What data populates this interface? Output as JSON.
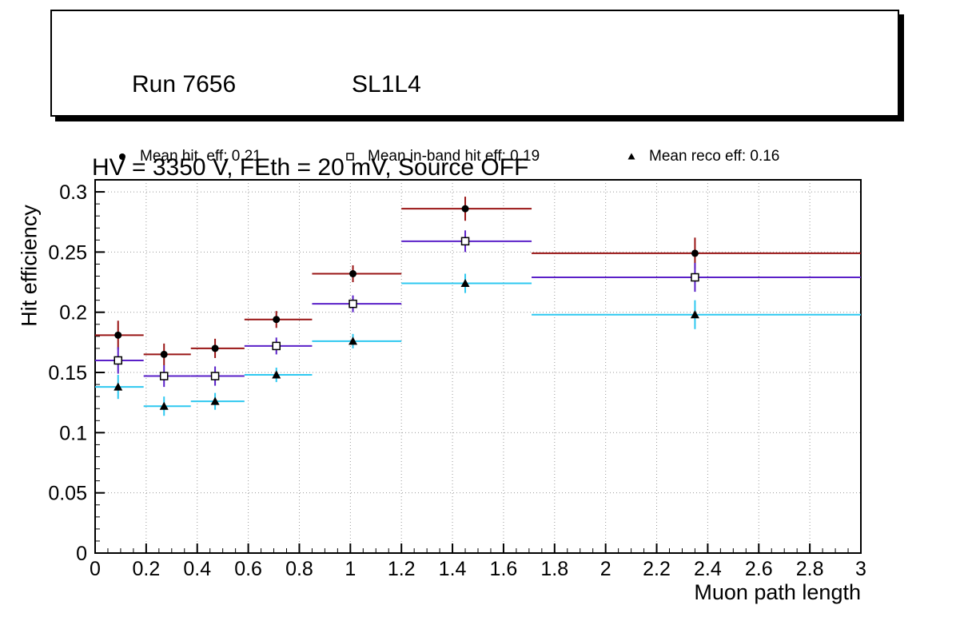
{
  "title_box": {
    "run": "Run 7656",
    "chamber": "SL1L4",
    "conditions": "HV = 3350 V, FEth = 20 mV, Source OFF"
  },
  "legend": {
    "items": [
      {
        "label": "Mean hit  eff: 0.21",
        "marker": "filled-circle"
      },
      {
        "label": "Mean in-band hit eff: 0.19",
        "marker": "open-square"
      },
      {
        "label": "Mean reco eff: 0.16",
        "marker": "filled-triangle"
      }
    ]
  },
  "chart_data": {
    "type": "scatter",
    "title": "",
    "xlabel": "Muon path length",
    "ylabel": "Hit efficiency",
    "xlim": [
      0,
      3
    ],
    "ylim": [
      0,
      0.31
    ],
    "x_ticks": [
      0,
      0.2,
      0.4,
      0.6,
      0.8,
      1,
      1.2,
      1.4,
      1.6,
      1.8,
      2,
      2.2,
      2.4,
      2.6,
      2.8,
      3
    ],
    "x_tick_labels": [
      "0",
      "0.2",
      "0.4",
      "0.6",
      "0.8",
      "1",
      "1.2",
      "1.4",
      "1.6",
      "1.8",
      "2",
      "2.2",
      "2.4",
      "2.6",
      "2.8",
      "3"
    ],
    "y_ticks": [
      0,
      0.05,
      0.1,
      0.15,
      0.2,
      0.25,
      0.3
    ],
    "y_tick_labels": [
      "0",
      "0.05",
      "0.1",
      "0.15",
      "0.2",
      "0.25",
      "0.3"
    ],
    "x_minor_step": 0.05,
    "y_minor_step": 0.01,
    "grid": "dotted",
    "grid_color": "#999999",
    "frame_color": "#000000",
    "series": [
      {
        "name": "Mean hit eff",
        "mean": 0.21,
        "marker": "filled-circle",
        "marker_color": "#000000",
        "line_color": "#991414",
        "points": [
          {
            "x": 0.09,
            "y": 0.181,
            "xlo": 0.0,
            "xhi": 0.19,
            "yerr": 0.012
          },
          {
            "x": 0.27,
            "y": 0.165,
            "xlo": 0.19,
            "xhi": 0.375,
            "yerr": 0.009
          },
          {
            "x": 0.47,
            "y": 0.17,
            "xlo": 0.375,
            "xhi": 0.585,
            "yerr": 0.008
          },
          {
            "x": 0.71,
            "y": 0.194,
            "xlo": 0.585,
            "xhi": 0.85,
            "yerr": 0.007
          },
          {
            "x": 1.01,
            "y": 0.232,
            "xlo": 0.85,
            "xhi": 1.2,
            "yerr": 0.007
          },
          {
            "x": 1.45,
            "y": 0.286,
            "xlo": 1.2,
            "xhi": 1.71,
            "yerr": 0.01
          },
          {
            "x": 2.35,
            "y": 0.249,
            "xlo": 1.71,
            "xhi": 3.0,
            "yerr": 0.013
          }
        ]
      },
      {
        "name": "Mean in-band hit eff",
        "mean": 0.19,
        "marker": "open-square",
        "marker_color": "#000000",
        "line_color": "#5a20c8",
        "points": [
          {
            "x": 0.09,
            "y": 0.16,
            "xlo": 0.0,
            "xhi": 0.19,
            "yerr": 0.011
          },
          {
            "x": 0.27,
            "y": 0.147,
            "xlo": 0.19,
            "xhi": 0.375,
            "yerr": 0.009
          },
          {
            "x": 0.47,
            "y": 0.147,
            "xlo": 0.375,
            "xhi": 0.585,
            "yerr": 0.008
          },
          {
            "x": 0.71,
            "y": 0.172,
            "xlo": 0.585,
            "xhi": 0.85,
            "yerr": 0.007
          },
          {
            "x": 1.01,
            "y": 0.207,
            "xlo": 0.85,
            "xhi": 1.2,
            "yerr": 0.007
          },
          {
            "x": 1.45,
            "y": 0.259,
            "xlo": 1.2,
            "xhi": 1.71,
            "yerr": 0.009
          },
          {
            "x": 2.35,
            "y": 0.229,
            "xlo": 1.71,
            "xhi": 3.0,
            "yerr": 0.012
          }
        ]
      },
      {
        "name": "Mean reco eff",
        "mean": 0.16,
        "marker": "filled-triangle",
        "marker_color": "#000000",
        "line_color": "#2ec8f0",
        "points": [
          {
            "x": 0.09,
            "y": 0.138,
            "xlo": 0.0,
            "xhi": 0.19,
            "yerr": 0.01
          },
          {
            "x": 0.27,
            "y": 0.122,
            "xlo": 0.19,
            "xhi": 0.375,
            "yerr": 0.008
          },
          {
            "x": 0.47,
            "y": 0.126,
            "xlo": 0.375,
            "xhi": 0.585,
            "yerr": 0.007
          },
          {
            "x": 0.71,
            "y": 0.148,
            "xlo": 0.585,
            "xhi": 0.85,
            "yerr": 0.006
          },
          {
            "x": 1.01,
            "y": 0.176,
            "xlo": 0.85,
            "xhi": 1.2,
            "yerr": 0.006
          },
          {
            "x": 1.45,
            "y": 0.224,
            "xlo": 1.2,
            "xhi": 1.71,
            "yerr": 0.008
          },
          {
            "x": 2.35,
            "y": 0.198,
            "xlo": 1.71,
            "xhi": 3.0,
            "yerr": 0.012
          }
        ]
      }
    ]
  }
}
